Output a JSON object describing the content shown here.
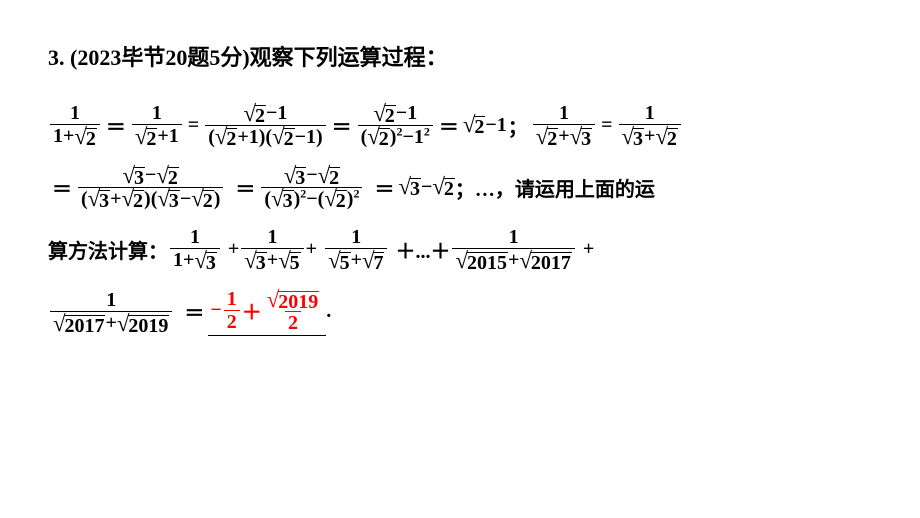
{
  "colors": {
    "text": "#000000",
    "answer": "#ff0000",
    "bg": "#ffffff"
  },
  "fontsize": {
    "title": 22,
    "body": 20
  },
  "title": "3. (2023毕节20题5分)观察下列运算过程：",
  "n1": "1",
  "n2": "2",
  "n3": "3",
  "n5": "5",
  "n7": "7",
  "y2015": "2015",
  "y2017": "2017",
  "y2019": "2019",
  "sqrt2": "2",
  "sqrt3": "3",
  "sqrt5": "5",
  "sqrt7": "7",
  "minus": "−",
  "plus": "＋",
  "plusn": "+",
  "eq": "＝",
  "eqn": "=",
  "one_over": "1",
  "txt_tail1": "；…，请运用上面的运",
  "txt_lead2": "算方法计算：",
  "txt_dots": "＋...＋",
  "answer": {
    "neg": "−",
    "half_num": "1",
    "half_den": "2",
    "plus": "＋",
    "r_num": "2019",
    "r_den": "2"
  },
  "period": "."
}
